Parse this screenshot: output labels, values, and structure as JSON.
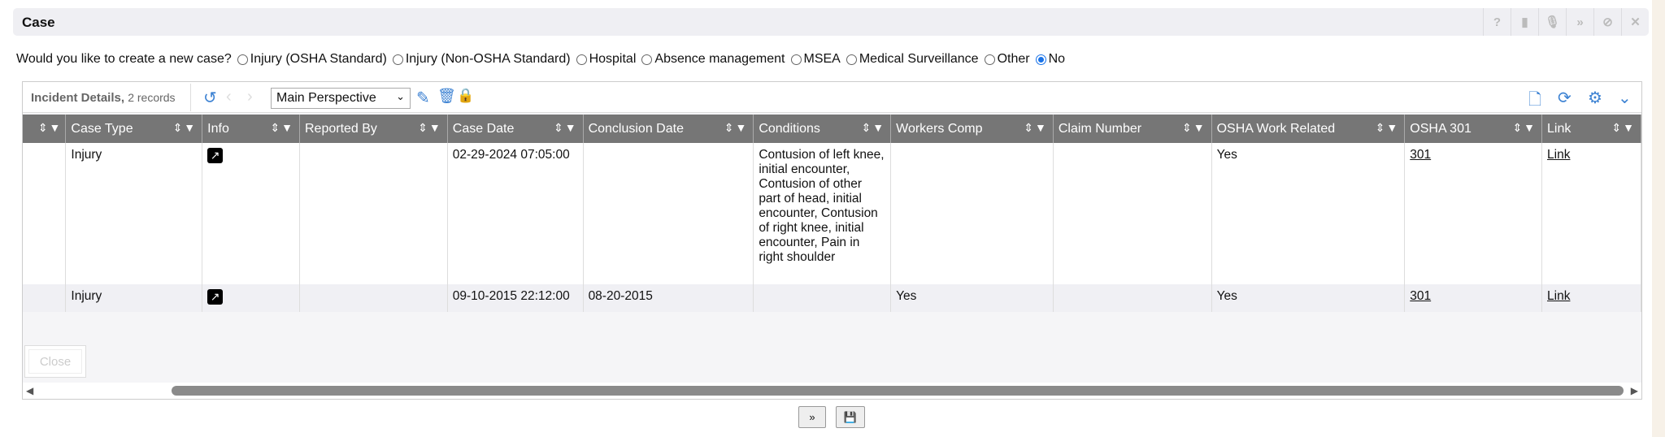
{
  "window": {
    "title": "Case",
    "icons": [
      "help-icon",
      "book-icon",
      "microphone-icon",
      "collapse-icon",
      "cancel-icon",
      "close-icon"
    ]
  },
  "question": {
    "label": "Would you like to create a new case?",
    "options": [
      "Injury (OSHA Standard)",
      "Injury (Non-OSHA Standard)",
      "Hospital",
      "Absence management",
      "MSEA",
      "Medical Surveillance",
      "Other",
      "No"
    ],
    "selected": "No"
  },
  "grid": {
    "title": "Incident Details,",
    "count": "2 records",
    "perspective": "Main Perspective",
    "columns": [
      "",
      "Case Type",
      "Info",
      "Reported By",
      "Case Date",
      "Conclusion Date",
      "Conditions",
      "Workers Comp",
      "Claim Number",
      "OSHA Work Related",
      "OSHA 301",
      "Link"
    ],
    "rows": [
      {
        "case_type": "Injury",
        "reported_by": "",
        "case_date": "02-29-2024 07:05:00",
        "conclusion_date": "",
        "conditions": "Contusion of left knee, initial encounter, Contusion of other part of head, initial encounter, Contusion of right knee, initial encounter, Pain in right shoulder",
        "workers_comp": "",
        "claim_number": "",
        "osha_work_related": "Yes",
        "osha_301": "301",
        "link": "Link"
      },
      {
        "case_type": "Injury",
        "reported_by": "",
        "case_date": "09-10-2015 22:12:00",
        "conclusion_date": "08-20-2015",
        "conditions": "",
        "workers_comp": "Yes",
        "claim_number": "",
        "osha_work_related": "Yes",
        "osha_301": "301",
        "link": "Link"
      }
    ],
    "close_label": "Close"
  },
  "accent": "#3e83d3"
}
